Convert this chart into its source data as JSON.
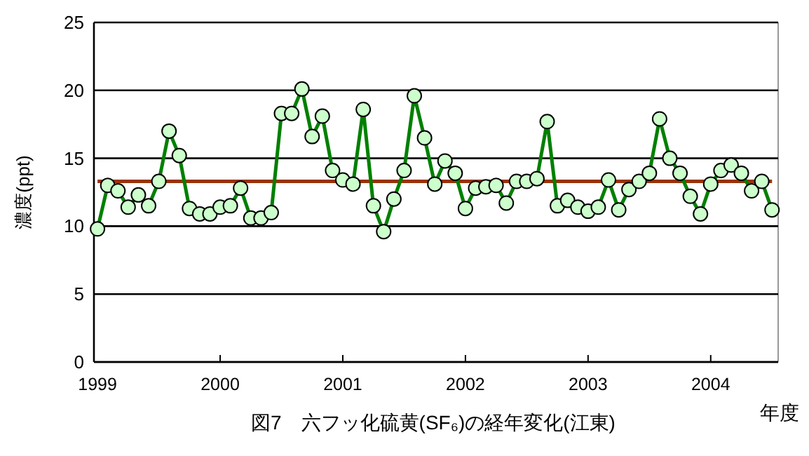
{
  "chart_data": {
    "type": "line",
    "title": "図7　六フッ化硫黄(SF₆)の経年変化(江東)",
    "xlabel": "年度",
    "ylabel": "濃度(ppt)",
    "categories": [
      "1999",
      null,
      null,
      null,
      null,
      null,
      null,
      null,
      null,
      null,
      null,
      null,
      "2000",
      null,
      null,
      null,
      null,
      null,
      null,
      null,
      null,
      null,
      null,
      null,
      "2001",
      null,
      null,
      null,
      null,
      null,
      null,
      null,
      null,
      null,
      null,
      null,
      "2002",
      null,
      null,
      null,
      null,
      null,
      null,
      null,
      null,
      null,
      null,
      null,
      "2003",
      null,
      null,
      null,
      null,
      null,
      null,
      null,
      null,
      null,
      null,
      null,
      "2004",
      null,
      null,
      null,
      null,
      null,
      null
    ],
    "series": [
      {
        "color": "#008000",
        "values": [
          9.8,
          13.0,
          12.6,
          11.4,
          12.3,
          11.5,
          13.3,
          17.0,
          15.2,
          11.3,
          10.9,
          10.9,
          11.4,
          11.5,
          12.8,
          10.6,
          10.6,
          11.0,
          18.3,
          18.3,
          20.1,
          16.6,
          18.1,
          14.1,
          13.4,
          13.1,
          18.6,
          11.5,
          9.6,
          12.0,
          14.1,
          19.6,
          16.5,
          13.1,
          14.8,
          13.9,
          11.3,
          12.8,
          12.9,
          13.0,
          11.7,
          13.3,
          13.3,
          13.5,
          17.7,
          11.5,
          11.9,
          11.4,
          11.1,
          11.4,
          13.4,
          11.2,
          12.7,
          13.3,
          13.9,
          17.9,
          15.0,
          13.9,
          12.2,
          10.9,
          13.1,
          14.1,
          14.5,
          13.9,
          12.6,
          13.3,
          11.2
        ]
      }
    ],
    "marker": "circle",
    "ylim": [
      0,
      25
    ],
    "yticks": [
      0,
      5,
      10,
      15,
      20,
      25
    ],
    "grid": "y",
    "ref_lines": [
      {
        "axis": "y",
        "value": 13.3,
        "color": "#993300"
      }
    ]
  }
}
